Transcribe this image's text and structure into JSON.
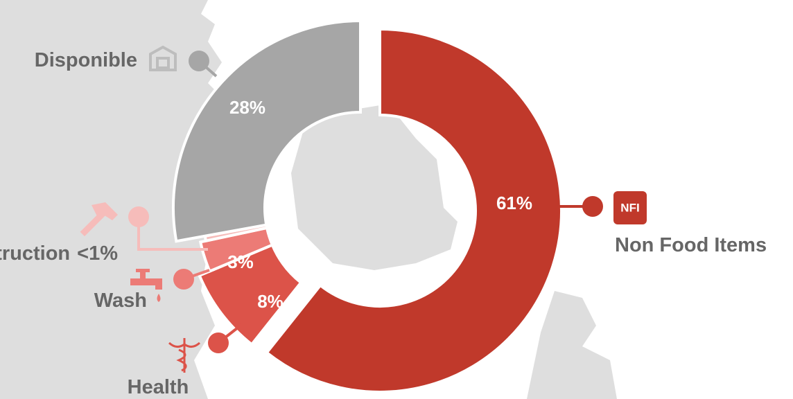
{
  "chart_data": {
    "type": "donut",
    "categories": [
      "Non Food Items",
      "Health",
      "Wash",
      "Construction",
      "Disponible"
    ],
    "values": [
      61,
      8,
      3,
      0.5,
      28
    ],
    "value_labels": [
      "61%",
      "8%",
      "3%",
      "<1%",
      "28%"
    ],
    "colors": [
      "#c0392b",
      "#dc5349",
      "#ec7b76",
      "#f6bcba",
      "#a6a6a6"
    ],
    "badge": "NFI"
  }
}
